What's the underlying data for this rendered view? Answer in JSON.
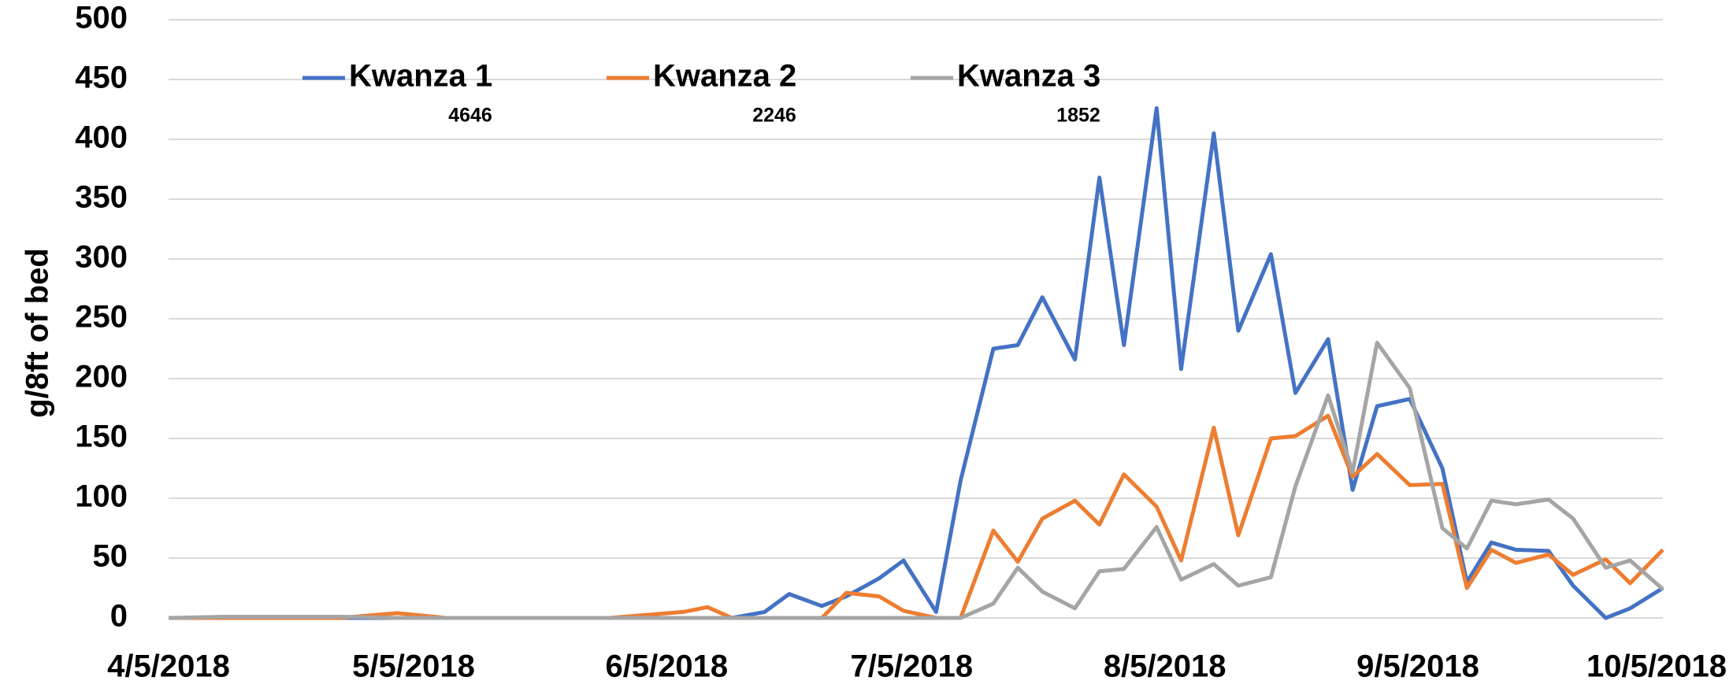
{
  "chart_data": {
    "type": "line",
    "y_label": "g/8ft of bed",
    "x": [
      "2018-04-05",
      "2018-04-12",
      "2018-04-19",
      "2018-04-26",
      "2018-05-03",
      "2018-05-09",
      "2018-05-16",
      "2018-05-22",
      "2018-05-29",
      "2018-06-07",
      "2018-06-10",
      "2018-06-13",
      "2018-06-17",
      "2018-06-20",
      "2018-06-24",
      "2018-06-27",
      "2018-07-01",
      "2018-07-04",
      "2018-07-08",
      "2018-07-11",
      "2018-07-15",
      "2018-07-18",
      "2018-07-21",
      "2018-07-25",
      "2018-07-28",
      "2018-07-31",
      "2018-08-04",
      "2018-08-07",
      "2018-08-11",
      "2018-08-14",
      "2018-08-18",
      "2018-08-21",
      "2018-08-25",
      "2018-08-28",
      "2018-08-31",
      "2018-09-04",
      "2018-09-08",
      "2018-09-11",
      "2018-09-14",
      "2018-09-17",
      "2018-09-21",
      "2018-09-24",
      "2018-09-28",
      "2018-10-01",
      "2018-10-05"
    ],
    "series": [
      {
        "name": "Kwanza 1",
        "color": "#4472c4",
        "total": 4646,
        "values": [
          0,
          0,
          0,
          0,
          0,
          0,
          0,
          0,
          0,
          0,
          0,
          0,
          5,
          20,
          10,
          18,
          33,
          48,
          5,
          115,
          225,
          228,
          268,
          216,
          368,
          228,
          426,
          208,
          405,
          240,
          304,
          188,
          233,
          107,
          177,
          183,
          125,
          30,
          63,
          57,
          56,
          27,
          0,
          8,
          25
        ]
      },
      {
        "name": "Kwanza 2",
        "color": "#ed7d31",
        "total": 2246,
        "values": [
          0,
          0,
          0,
          0,
          4,
          0,
          0,
          0,
          0,
          5,
          9,
          0,
          0,
          0,
          0,
          21,
          18,
          6,
          0,
          0,
          73,
          47,
          83,
          98,
          78,
          120,
          93,
          48,
          159,
          69,
          150,
          152,
          169,
          118,
          137,
          111,
          112,
          25,
          57,
          46,
          53,
          36,
          49,
          29,
          57
        ]
      },
      {
        "name": "Kwanza 3",
        "color": "#a5a5a5",
        "total": 1852,
        "values": [
          0,
          1,
          1,
          1,
          0,
          0,
          0,
          0,
          0,
          0,
          0,
          0,
          0,
          0,
          0,
          0,
          0,
          0,
          0,
          0,
          12,
          42,
          22,
          8,
          39,
          41,
          76,
          32,
          45,
          27,
          34,
          110,
          186,
          122,
          230,
          192,
          75,
          58,
          98,
          95,
          99,
          83,
          42,
          48,
          24
        ]
      }
    ],
    "xlim": [
      "2018-04-05",
      "2018-10-05"
    ],
    "xticks": [
      {
        "value": "2018-04-05",
        "label": "4/5/2018"
      },
      {
        "value": "2018-05-05",
        "label": "5/5/2018"
      },
      {
        "value": "2018-06-05",
        "label": "6/5/2018"
      },
      {
        "value": "2018-07-05",
        "label": "7/5/2018"
      },
      {
        "value": "2018-08-05",
        "label": "8/5/2018"
      },
      {
        "value": "2018-09-05",
        "label": "9/5/2018"
      },
      {
        "value": "2018-10-05",
        "label": "10/5/2018"
      }
    ],
    "ylim": [
      0,
      500
    ],
    "yticks": [
      0,
      50,
      100,
      150,
      200,
      250,
      300,
      350,
      400,
      450,
      500
    ],
    "grid": true,
    "legend": "top"
  }
}
